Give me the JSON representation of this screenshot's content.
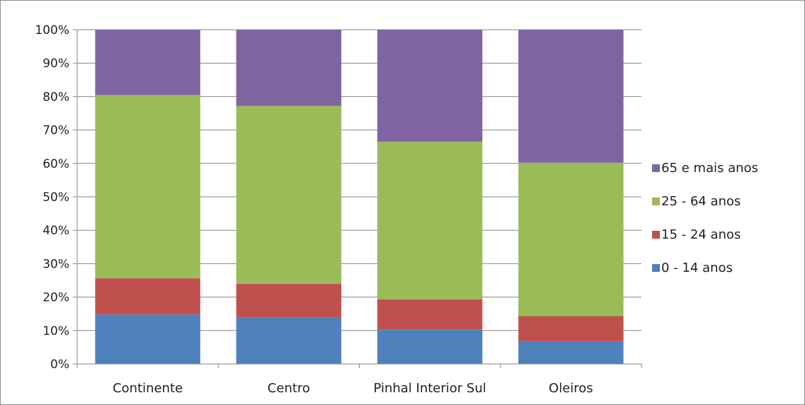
{
  "chart_data": {
    "type": "bar",
    "stacked": true,
    "normalized": true,
    "categories": [
      "Continente",
      "Centro",
      "Pinhal Interior Sul",
      "Oleiros"
    ],
    "series": [
      {
        "name": "0 - 14 anos",
        "color": "#4F81BD",
        "values": [
          14.8,
          13.9,
          10.3,
          6.8
        ]
      },
      {
        "name": "15 - 24 anos",
        "color": "#C0504D",
        "values": [
          10.8,
          10.1,
          9.0,
          7.5
        ]
      },
      {
        "name": "25 - 64 anos",
        "color": "#9BBB59",
        "values": [
          54.9,
          53.2,
          47.2,
          45.9
        ]
      },
      {
        "name": "65 e mais anos",
        "color": "#8064A2",
        "values": [
          19.5,
          22.8,
          33.5,
          39.8
        ]
      }
    ],
    "y_ticks": [
      "0%",
      "10%",
      "20%",
      "30%",
      "40%",
      "50%",
      "60%",
      "70%",
      "80%",
      "90%",
      "100%"
    ],
    "ylim": [
      0,
      100
    ],
    "grid": true,
    "legend_position": "right",
    "legend_order": [
      "65 e mais anos",
      "25 - 64 anos",
      "15 - 24 anos",
      "0 - 14 anos"
    ],
    "title": "",
    "xlabel": "",
    "ylabel": ""
  },
  "colors": {
    "gridline": "#868686",
    "axis": "#868686",
    "border": "#8c8c8c"
  }
}
